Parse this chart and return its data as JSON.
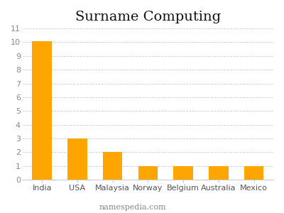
{
  "title": "Surname Computing",
  "categories": [
    "India",
    "USA",
    "Malaysia",
    "Norway",
    "Belgium",
    "Australia",
    "Mexico"
  ],
  "values": [
    10.1,
    3.0,
    2.0,
    1.0,
    1.0,
    1.0,
    1.0
  ],
  "bar_color": "#FFA500",
  "ylim": [
    0,
    11
  ],
  "yticks": [
    0,
    1,
    2,
    3,
    4,
    5,
    6,
    7,
    8,
    9,
    10,
    11
  ],
  "grid_color": "#cccccc",
  "background_color": "#ffffff",
  "title_fontsize": 14,
  "tick_fontsize": 8,
  "watermark": "namespedia.com",
  "watermark_fontsize": 8
}
